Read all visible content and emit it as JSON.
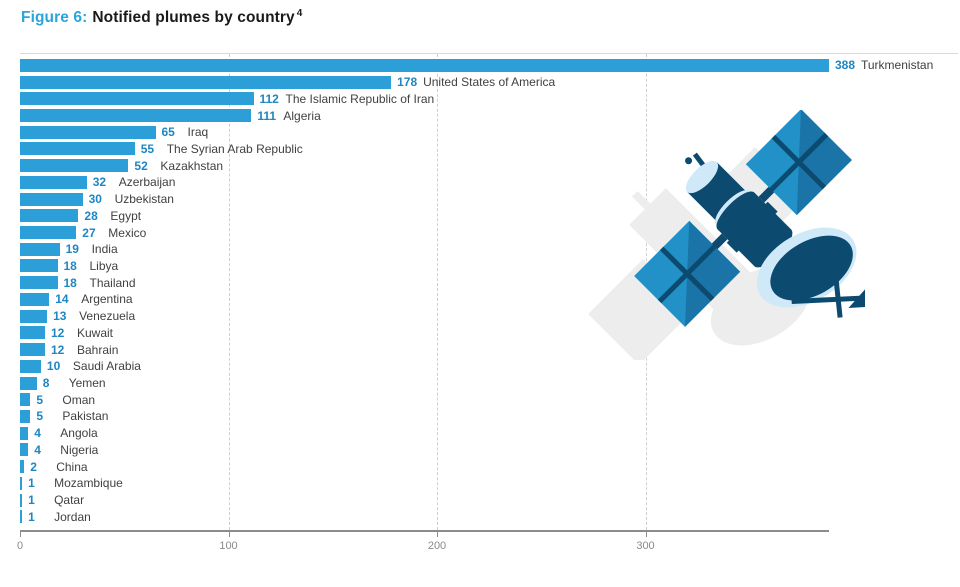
{
  "figure": {
    "label": "Figure 6:",
    "title": "Notified plumes by country",
    "footnote_marker": "4"
  },
  "colors": {
    "bar": "#2c9fd8",
    "value_label": "#1e86c2",
    "country_label": "#414141",
    "title_accent": "#29a5dc",
    "axis": "#8c8c8c",
    "gridline": "#cfcfcf",
    "satellite_dark": "#0c4a70",
    "satellite_mid": "#1a74a8",
    "satellite_bright": "#2191c8",
    "satellite_light": "#cfe9f8"
  },
  "chart_data": {
    "type": "bar",
    "orientation": "horizontal",
    "title": "Notified plumes by country",
    "categories": [
      "Turkmenistan",
      "United States of America",
      "The Islamic Republic of Iran",
      "Algeria",
      "Iraq",
      "The Syrian Arab Republic",
      "Kazakhstan",
      "Azerbaijan",
      "Uzbekistan",
      "Egypt",
      "Mexico",
      "India",
      "Libya",
      "Thailand",
      "Argentina",
      "Venezuela",
      "Kuwait",
      "Bahrain",
      "Saudi Arabia",
      "Yemen",
      "Oman",
      "Pakistan",
      "Angola",
      "Nigeria",
      "China",
      "Mozambique",
      "Qatar",
      "Jordan"
    ],
    "values": [
      388,
      178,
      112,
      111,
      65,
      55,
      52,
      32,
      30,
      28,
      27,
      19,
      18,
      18,
      14,
      13,
      12,
      12,
      10,
      8,
      5,
      5,
      4,
      4,
      2,
      1,
      1,
      1
    ],
    "xlim": [
      0,
      388
    ],
    "x_ticks": [
      0,
      100,
      200,
      300
    ],
    "grid": "vertical-dashed",
    "legend": "none",
    "xlabel": "",
    "ylabel": ""
  },
  "x_axis": {
    "tick_labels": [
      "0",
      "100",
      "200",
      "300"
    ]
  },
  "illustration": {
    "name": "satellite"
  }
}
